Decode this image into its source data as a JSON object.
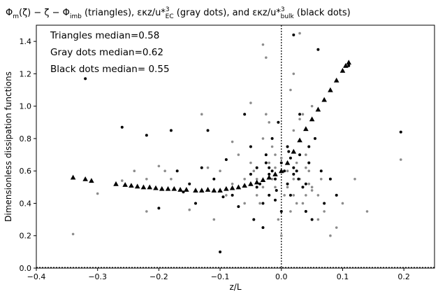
{
  "chart_data": {
    "type": "scatter",
    "title": "Φm(ζ) − ζ − Φimb (triangles), εκz/u*³EC (gray dots), and εκz/u*³bulk (black dots)",
    "title_parts": {
      "t1": "Φ",
      "t1_sub": "m",
      "t2": "(ζ) − ζ − Φ",
      "t2_sub": "imb",
      "t3": " (triangles), εκz/u*",
      "t3_sup": "3",
      "t3_sub": "EC",
      "t4": " (gray dots), and εκz/u*",
      "t4_sup": "3",
      "t4_sub": "bulk",
      "t5": " (black dots)"
    },
    "xlabel": "z/L",
    "ylabel": "Dimensionless dissipation functions",
    "xlim": [
      -0.4,
      0.25
    ],
    "ylim": [
      0.0,
      1.5
    ],
    "xticks": [
      -0.4,
      -0.3,
      -0.2,
      -0.1,
      0.0,
      0.1,
      0.2
    ],
    "xtick_labels": [
      "−0.4",
      "−0.3",
      "−0.2",
      "−0.1",
      "0.0",
      "0.1",
      "0.2"
    ],
    "yticks": [
      0.0,
      0.2,
      0.4,
      0.6,
      0.8,
      1.0,
      1.2,
      1.4
    ],
    "ytick_labels": [
      "0.0",
      "0.2",
      "0.4",
      "0.6",
      "0.8",
      "1.0",
      "1.2",
      "1.4"
    ],
    "reference_line": {
      "x": 0.0,
      "style": "dotted"
    },
    "annotations": [
      "Triangles median=0.58",
      "Gray dots median=0.62",
      "Black dots median= 0.55"
    ],
    "colors": {
      "triangles": "#000000",
      "gray_dots": "#8c8c8c",
      "black_dots": "#000000"
    },
    "series": [
      {
        "marker": "triangle",
        "x": [
          -0.34,
          -0.32,
          -0.31,
          -0.27,
          -0.255,
          -0.245,
          -0.235,
          -0.225,
          -0.215,
          -0.205,
          -0.195,
          -0.185,
          -0.175,
          -0.165,
          -0.155,
          -0.14,
          -0.13,
          -0.12,
          -0.11,
          -0.1,
          -0.09,
          -0.08,
          -0.07,
          -0.06,
          -0.05,
          -0.04,
          -0.03,
          -0.02,
          -0.01,
          0.0,
          0.01,
          0.02,
          0.03,
          0.04,
          0.05,
          0.06,
          0.07,
          0.08,
          0.09,
          0.1,
          0.105,
          0.11
        ],
        "y": [
          0.56,
          0.55,
          0.54,
          0.52,
          0.515,
          0.51,
          0.505,
          0.5,
          0.5,
          0.495,
          0.49,
          0.49,
          0.49,
          0.485,
          0.485,
          0.48,
          0.48,
          0.485,
          0.48,
          0.48,
          0.49,
          0.495,
          0.5,
          0.51,
          0.52,
          0.53,
          0.545,
          0.56,
          0.58,
          0.6,
          0.65,
          0.72,
          0.79,
          0.86,
          0.92,
          0.98,
          1.04,
          1.1,
          1.16,
          1.22,
          1.25,
          1.27
        ]
      },
      {
        "marker": "gray-dot",
        "x": [
          -0.34,
          -0.3,
          -0.26,
          -0.24,
          -0.22,
          -0.2,
          -0.18,
          -0.17,
          -0.15,
          -0.13,
          -0.12,
          -0.1,
          -0.09,
          -0.08,
          -0.07,
          -0.06,
          -0.05,
          -0.045,
          -0.04,
          -0.035,
          -0.03,
          -0.025,
          -0.02,
          -0.015,
          -0.01,
          -0.005,
          0.0,
          0.005,
          0.01,
          0.015,
          0.02,
          0.025,
          0.03,
          0.035,
          0.04,
          0.045,
          0.05,
          0.06,
          0.065,
          0.07,
          0.08,
          0.09,
          0.1,
          0.12,
          0.14,
          -0.03,
          -0.02,
          -0.01,
          0.01,
          0.02,
          0.03,
          -0.04,
          -0.03,
          -0.02,
          -0.01,
          0.0,
          0.01,
          0.02,
          0.03,
          0.04,
          0.05,
          -0.06,
          0.06,
          0.195,
          -0.22,
          -0.19,
          -0.11,
          -0.08,
          0.02,
          0.03,
          -0.025,
          0.015,
          0.04,
          0.05,
          -0.05,
          -0.015,
          0.005,
          0.025,
          0.035,
          0.045
        ],
        "y": [
          0.21,
          0.46,
          0.54,
          0.6,
          0.35,
          0.63,
          0.55,
          0.6,
          0.36,
          0.95,
          0.62,
          0.6,
          0.45,
          0.78,
          0.7,
          0.4,
          1.02,
          0.6,
          0.55,
          0.4,
          1.38,
          1.3,
          0.9,
          0.75,
          0.7,
          0.3,
          0.2,
          0.45,
          0.75,
          0.35,
          0.85,
          0.4,
          1.45,
          0.95,
          0.45,
          0.6,
          1.0,
          0.3,
          0.55,
          0.35,
          0.2,
          0.25,
          0.4,
          0.55,
          0.35,
          0.8,
          0.65,
          0.5,
          0.6,
          0.55,
          0.7,
          0.45,
          0.5,
          0.58,
          0.62,
          0.68,
          0.5,
          0.45,
          0.55,
          0.62,
          0.48,
          0.55,
          0.45,
          0.67,
          0.55,
          0.6,
          0.3,
          0.52,
          1.2,
          0.92,
          0.95,
          1.1,
          0.7,
          0.5,
          0.65,
          0.55,
          0.6,
          0.65,
          0.4,
          0.52
        ]
      },
      {
        "marker": "black-dot",
        "x": [
          -0.32,
          -0.26,
          -0.22,
          -0.2,
          -0.18,
          -0.17,
          -0.16,
          -0.15,
          -0.14,
          -0.13,
          -0.12,
          -0.11,
          -0.1,
          -0.09,
          -0.08,
          -0.07,
          -0.06,
          -0.05,
          -0.045,
          -0.04,
          -0.035,
          -0.03,
          -0.025,
          -0.02,
          -0.015,
          -0.01,
          -0.005,
          0.0,
          0.005,
          0.01,
          0.015,
          0.02,
          0.025,
          0.03,
          0.035,
          0.04,
          0.045,
          0.05,
          0.06,
          0.07,
          0.08,
          0.09,
          0.11,
          0.195,
          -0.03,
          -0.02,
          -0.01,
          0.01,
          0.02,
          0.03,
          -0.04,
          -0.02,
          0.0,
          0.02,
          0.04,
          -0.015,
          0.015,
          0.028,
          -0.008,
          0.012,
          -0.095,
          -0.05,
          -0.025,
          0.045,
          0.055,
          0.065
        ],
        "y": [
          1.17,
          0.87,
          0.82,
          0.37,
          0.85,
          0.6,
          0.47,
          0.52,
          0.4,
          0.62,
          0.85,
          0.55,
          0.1,
          0.67,
          0.45,
          0.38,
          0.95,
          0.75,
          0.3,
          0.62,
          0.52,
          0.25,
          0.7,
          0.58,
          0.8,
          0.42,
          0.9,
          0.35,
          0.6,
          0.75,
          0.45,
          1.44,
          0.6,
          0.95,
          0.5,
          0.35,
          0.65,
          0.3,
          1.35,
          0.4,
          0.55,
          0.45,
          1.25,
          0.84,
          0.4,
          0.62,
          0.55,
          0.52,
          0.58,
          0.7,
          0.5,
          0.45,
          0.65,
          0.62,
          0.52,
          0.6,
          0.68,
          0.55,
          0.48,
          0.72,
          0.44,
          0.58,
          0.65,
          0.75,
          0.8,
          0.6
        ]
      }
    ]
  }
}
